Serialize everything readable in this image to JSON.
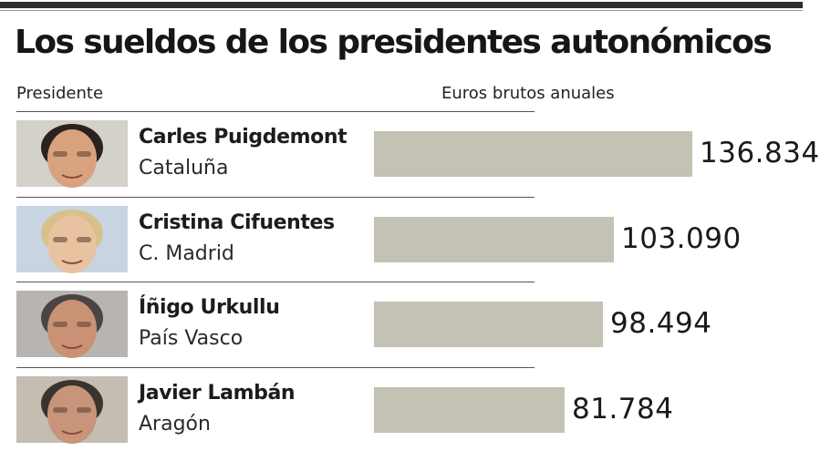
{
  "title": "Los sueldos de los presidentes autonómicos",
  "header": {
    "president": "Presidente",
    "value": "Euros brutos anuales"
  },
  "colors": {
    "bar": "#c4c2b4",
    "text": "#1a1a1a",
    "rule": "#2d2d2d"
  },
  "rows": [
    {
      "name": "Carles Puigdemont",
      "region": "Cataluña",
      "value_label": "136.834",
      "photo_icon": "portrait-photo"
    },
    {
      "name": "Cristina Cifuentes",
      "region": "C. Madrid",
      "value_label": "103.090",
      "photo_icon": "portrait-photo"
    },
    {
      "name": "Íñigo Urkullu",
      "region": "País Vasco",
      "value_label": "98.494",
      "photo_icon": "portrait-photo"
    },
    {
      "name": "Javier Lambán",
      "region": "Aragón",
      "value_label": "81.784",
      "photo_icon": "portrait-photo"
    }
  ],
  "chart_data": {
    "type": "bar",
    "orientation": "horizontal",
    "title": "Los sueldos de los presidentes autonómicos",
    "xlabel": "Euros brutos anuales",
    "ylabel": "Presidente",
    "categories": [
      "Carles Puigdemont",
      "Cristina Cifuentes",
      "Íñigo Urkullu",
      "Javier Lambán"
    ],
    "values": [
      136834,
      103090,
      98494,
      81784
    ],
    "xlim": [
      0,
      136834
    ]
  }
}
